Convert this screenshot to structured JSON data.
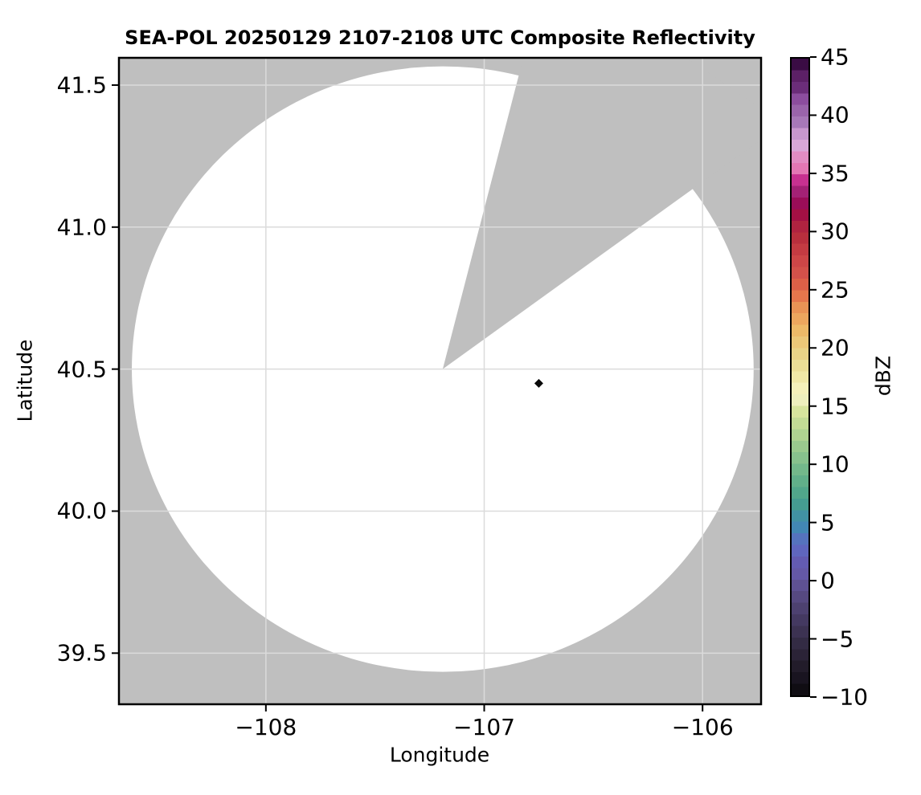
{
  "figure": {
    "background": "#ffffff"
  },
  "chart_data": {
    "type": "heatmap",
    "subtype": "radar-composite-reflectivity-ppi",
    "title": "SEA-POL 20250129 2107-2108 UTC Composite Reflectivity",
    "xlabel": "Longitude",
    "ylabel": "Latitude",
    "xlim": [
      -108.673,
      -105.732
    ],
    "ylim": [
      39.32,
      41.596
    ],
    "grid": true,
    "gridline_color": "#dbdbdb",
    "outside_fill_color": "#bfbfbf",
    "frame_color": "#000000",
    "xticks": {
      "values": [
        -108,
        -107,
        -106
      ],
      "labels": [
        "−108",
        "−107",
        "−106"
      ]
    },
    "yticks": {
      "values": [
        41.5,
        41.0,
        40.5,
        40.0,
        39.5
      ],
      "labels": [
        "41.5",
        "41.0",
        "40.5",
        "40.0",
        "39.5"
      ]
    },
    "coverage": {
      "description": "white circular radar coverage footprint with a blocked azimuth sector shown in background gray",
      "center_lon": -107.19,
      "center_lat": 40.5,
      "radius_lon_deg": 1.424,
      "radius_lat_deg": 1.066,
      "fill": "#ffffff",
      "blocked_sector_azimuth_deg": [
        14.5,
        54.2
      ]
    },
    "points": [
      {
        "lon": -106.75,
        "lat": 40.45,
        "marker": "diamond",
        "color": "#0a0a0a"
      }
    ],
    "colorbar": {
      "label": "dBZ",
      "min": -10,
      "max": 45,
      "band_step": 1,
      "ticks": [
        45,
        40,
        35,
        30,
        25,
        20,
        15,
        10,
        5,
        0,
        -5,
        -10
      ],
      "tick_labels": [
        "45",
        "40",
        "35",
        "30",
        "25",
        "20",
        "15",
        "10",
        "5",
        "0",
        "−5",
        "−10"
      ],
      "band_colors_top_to_bottom": [
        "#3a0c44",
        "#5c2066",
        "#6b2d79",
        "#8c4d9e",
        "#9a64ab",
        "#a778b8",
        "#c897ce",
        "#d9a7d8",
        "#e18cc3",
        "#e377b4",
        "#c73190",
        "#a32175",
        "#9a0d58",
        "#a31044",
        "#b02340",
        "#b92f3d",
        "#c43b42",
        "#cd4647",
        "#d3514a",
        "#dc6047",
        "#e5764c",
        "#e99355",
        "#eca65e",
        "#edb968",
        "#ecc778",
        "#ead387",
        "#ebde96",
        "#f0e8a6",
        "#f5f1ba",
        "#eef0bd",
        "#d7e59d",
        "#c3dc95",
        "#afd391",
        "#9aca8e",
        "#87c18d",
        "#73b88b",
        "#61af8a",
        "#51a68b",
        "#459c91",
        "#4192a3",
        "#4287b4",
        "#5573be",
        "#5f66bf",
        "#635bb2",
        "#6458a6",
        "#5e5193",
        "#564981",
        "#4d4170",
        "#443961",
        "#3c3252",
        "#332b44",
        "#2b2337",
        "#221c2a",
        "#191420",
        "#100d13"
      ]
    }
  }
}
